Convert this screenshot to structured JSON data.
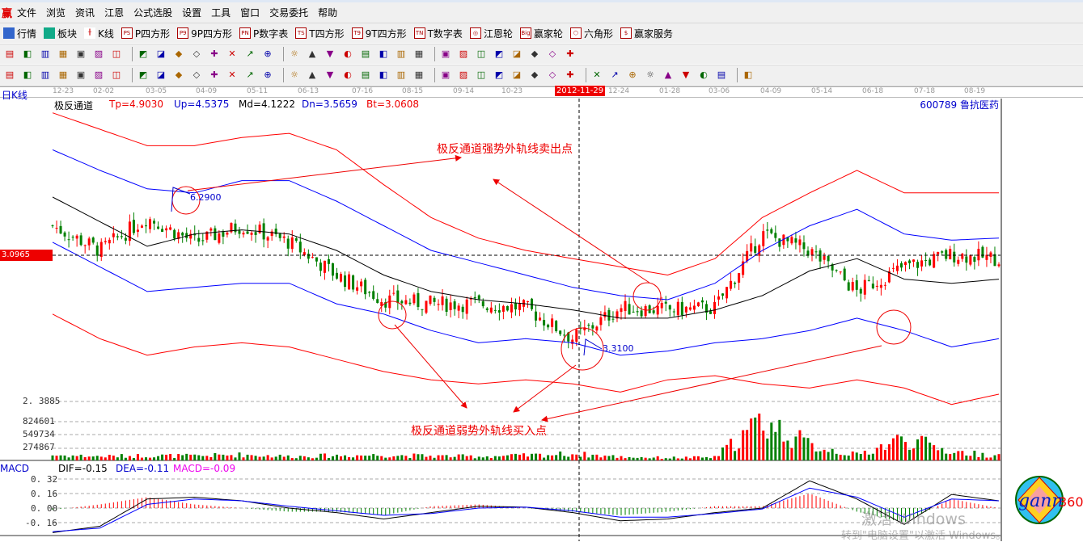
{
  "menu": {
    "logo": "赢",
    "items": [
      "文件",
      "浏览",
      "资讯",
      "江恩",
      "公式选股",
      "设置",
      "工具",
      "窗口",
      "交易委托",
      "帮助"
    ]
  },
  "toolbar1": [
    {
      "label": "行情",
      "icon": "table-icon"
    },
    {
      "label": "板块",
      "icon": "blocks-icon"
    },
    {
      "label": "K线",
      "icon": "candlestick-icon"
    },
    {
      "label": "P四方形",
      "icon": "ps-icon",
      "tag": "PS"
    },
    {
      "label": "9P四方形",
      "icon": "p9-icon",
      "tag": "P9"
    },
    {
      "label": "P数字表",
      "icon": "pn-icon",
      "tag": "PN"
    },
    {
      "label": "T四方形",
      "icon": "ts-icon",
      "tag": "TS"
    },
    {
      "label": "9T四方形",
      "icon": "t9-icon",
      "tag": "T9"
    },
    {
      "label": "T数字表",
      "icon": "tn-icon",
      "tag": "TN"
    },
    {
      "label": "江恩轮",
      "icon": "gann-wheel-icon",
      "tag": "◎"
    },
    {
      "label": "赢家轮",
      "icon": "big-wheel-icon",
      "tag": "Big"
    },
    {
      "label": "六角形",
      "icon": "hexagon-icon",
      "tag": "⬡"
    },
    {
      "label": "赢家服务",
      "icon": "dollar-icon",
      "tag": "$"
    }
  ],
  "toolbar2_icons": [
    "chart-type-icon",
    "menu-arrow-icon",
    "screen-icon",
    "doc-icon",
    "bars-icon",
    "candle-icon",
    "line-icon",
    "zero-icon",
    "no-icon",
    "flag-icon",
    "first-icon",
    "next-icon",
    "prev-icon",
    "play-icon",
    "diamond-1-icon",
    "diamond-2-icon",
    "diamond-3-icon",
    "diamond-4-icon",
    "diamond-5-icon",
    "diamond-6-icon",
    "hand-icon",
    "cross-icon",
    "zigzag-icon",
    "gift-icon",
    "globe-icon",
    "calendar-icon",
    "calculator-icon",
    "window-icon",
    "save-icon",
    "print-icon",
    "export-icon"
  ],
  "toolbar3_icons": [
    "pencil-icon",
    "hash-icon",
    "grid-1-icon",
    "grid-2-icon",
    "grid-3-icon",
    "grid-4-icon",
    "grid-5-icon",
    "grid-6-icon",
    "circle-grid-icon",
    "fan-icon",
    "scale-icon",
    "comb-icon",
    "arc-icon",
    "target-icon",
    "star-icon",
    "cross-diag-icon",
    "angle-icon",
    "box-icon",
    "grid-7-icon",
    "grid-8-icon",
    "bracket-icon",
    "fan-lines-icon",
    "gann-box-icon",
    "parallel-icon",
    "zigzag-2-icon",
    "grid-9-icon",
    "grid-10-icon",
    "slash-icon",
    "table-2-icon",
    "percent-icon",
    "coin-icon",
    "circle-icon",
    "triangle-icon",
    "fib-icon",
    "fib-2-icon",
    "fib-3-icon",
    "fib-4-icon",
    "fib-5-icon",
    "fib-6-icon",
    "fib-7-icon"
  ],
  "period": "日K线",
  "date_ticks": [
    "12-23",
    "02-02",
    "03-05",
    "04-09",
    "05-11",
    "06-13",
    "07-16",
    "08-15",
    "09-14",
    "10-23",
    "12-24",
    "01-28",
    "03-06",
    "04-09",
    "05-14",
    "06-18",
    "07-18",
    "08-19"
  ],
  "cursor_date": "2012-11-29",
  "stock": {
    "code": "600789",
    "name": "鲁抗医药"
  },
  "indicator": {
    "name": "极反通道",
    "tp": "Tp=4.9030",
    "up": "Up=4.5375",
    "md": "Md=4.1222",
    "dn": "Dn=3.5659",
    "bt": "Bt=3.0608"
  },
  "price_labels": {
    "cursor_price": "3.0965",
    "low": "2. 3885"
  },
  "volume_labels": [
    "824601",
    "549734",
    "274867"
  ],
  "macd": {
    "title": "MACD",
    "dif": "DIF=-0.15",
    "dea": "DEA=-0.11",
    "macd": "MACD=-0.09",
    "ticks": [
      "0. 32",
      "0. 16",
      "0. 00",
      "-0. 16"
    ]
  },
  "annotations": {
    "sell": "极反通道强势外轨线卖出点",
    "buy": "极反通道弱势外轨线买入点",
    "high_label": "6.2900",
    "low_label": "3.3100"
  },
  "logo_text": "gann360",
  "watermark": {
    "line1": "激活 Windows",
    "line2": "转到\"电脑设置\"以激活 Windows。"
  },
  "colors": {
    "up": "#ff0000",
    "down": "#008000",
    "top_band": "#ff0000",
    "upper_band": "#0000ff",
    "mid_band": "#000000",
    "lower_band": "#0000ff",
    "bottom_band": "#ff0000",
    "dif": "#000000",
    "dea": "#0000ff"
  },
  "chart_data": {
    "type": "candlestick-with-bands",
    "price_reference": [
      3.0965,
      2.3885
    ],
    "series": [
      {
        "name": "Tp",
        "values": [
          3.79,
          3.71,
          3.63,
          3.63,
          3.67,
          3.69,
          3.61,
          3.44,
          3.28,
          3.18,
          3.12,
          3.08,
          3.04,
          3.0,
          3.08,
          3.28,
          3.4,
          3.51,
          3.4,
          3.4,
          3.4
        ]
      },
      {
        "name": "Up",
        "values": [
          3.61,
          3.51,
          3.42,
          3.4,
          3.46,
          3.46,
          3.36,
          3.24,
          3.12,
          3.06,
          3.0,
          2.94,
          2.9,
          2.88,
          2.96,
          3.12,
          3.24,
          3.32,
          3.2,
          3.17,
          3.18
        ]
      },
      {
        "name": "Md",
        "values": [
          3.38,
          3.26,
          3.14,
          3.2,
          3.22,
          3.2,
          3.12,
          3.0,
          2.92,
          2.88,
          2.86,
          2.83,
          2.79,
          2.79,
          2.83,
          2.9,
          3.02,
          3.08,
          2.98,
          2.96,
          2.98
        ]
      },
      {
        "name": "Dn",
        "values": [
          3.16,
          3.04,
          2.92,
          2.94,
          2.96,
          2.96,
          2.86,
          2.81,
          2.73,
          2.67,
          2.69,
          2.67,
          2.61,
          2.63,
          2.67,
          2.69,
          2.73,
          2.79,
          2.73,
          2.65,
          2.69
        ]
      },
      {
        "name": "Bt",
        "values": [
          2.81,
          2.69,
          2.61,
          2.65,
          2.67,
          2.65,
          2.59,
          2.53,
          2.49,
          2.47,
          2.49,
          2.47,
          2.43,
          2.49,
          2.51,
          2.47,
          2.45,
          2.49,
          2.45,
          2.37,
          2.42
        ]
      }
    ],
    "close": [
      3.24,
      3.12,
      3.28,
      3.16,
      3.24,
      3.16,
      3.0,
      2.88,
      2.86,
      2.86,
      2.84,
      2.69,
      2.84,
      2.83,
      2.84,
      3.2,
      3.12,
      2.92,
      3.04,
      3.1,
      3.08
    ],
    "volume": [
      120000,
      90000,
      110000,
      100000,
      130000,
      90000,
      110000,
      120000,
      100000,
      90000,
      110000,
      150000,
      80000,
      60000,
      70000,
      900000,
      350000,
      120000,
      500000,
      200000,
      100000
    ],
    "dif": [
      -0.27,
      -0.2,
      0.1,
      0.12,
      0.08,
      0.0,
      -0.05,
      -0.12,
      -0.05,
      0.02,
      0.01,
      -0.05,
      -0.14,
      -0.12,
      -0.05,
      0.0,
      0.3,
      0.1,
      -0.18,
      0.15,
      0.08
    ],
    "dea": [
      -0.26,
      -0.22,
      0.04,
      0.1,
      0.08,
      0.02,
      -0.03,
      -0.08,
      -0.06,
      0.0,
      0.01,
      -0.03,
      -0.1,
      -0.1,
      -0.06,
      -0.01,
      0.22,
      0.12,
      -0.1,
      0.1,
      0.08
    ],
    "macd_ylim": [
      -0.32,
      0.32
    ]
  }
}
